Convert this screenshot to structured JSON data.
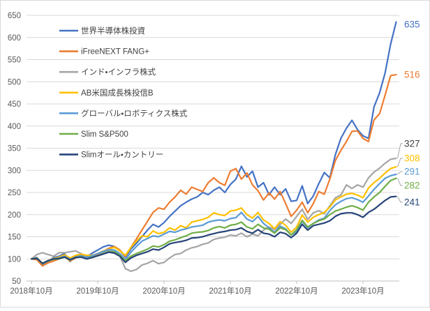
{
  "chart_data": {
    "type": "line",
    "title": "",
    "frequency": "monthly",
    "n_points": 67,
    "x_unit": "month",
    "x_tick_labels": [
      "2018年10月",
      "2019年10月",
      "2020年10月",
      "2021年10月",
      "2022年10月",
      "2023年10月"
    ],
    "x_tick_point_indices": [
      0,
      12,
      24,
      36,
      48,
      60
    ],
    "y_ticks": [
      650,
      600,
      550,
      500,
      450,
      400,
      350,
      300,
      250,
      200,
      150,
      100,
      50
    ],
    "ylim": [
      50,
      650
    ],
    "grid": "horizontal",
    "legend_position": "inside-top-left",
    "colors": {
      "grid": "#D9D9D9",
      "frame_border": "#D9D9D9",
      "axis_line": "#BFBFBF",
      "axis_text": "#595959",
      "legend_text": "#404040",
      "leader_line": "#A6A6A6",
      "background": "#FFFFFF"
    },
    "series": [
      {
        "name": "世界半導体株投資",
        "color": "#4472C4",
        "end_label": 635,
        "values": [
          100,
          103,
          86,
          94,
          103,
          106,
          112,
          94,
          107,
          110,
          104,
          113,
          120,
          127,
          131,
          128,
          120,
          104,
          122,
          135,
          150,
          165,
          178,
          172,
          182,
          196,
          208,
          220,
          228,
          235,
          240,
          250,
          245,
          255,
          262,
          250,
          268,
          280,
          309,
          285,
          298,
          262,
          272,
          245,
          262,
          245,
          258,
          230,
          232,
          265,
          225,
          242,
          270,
          295,
          283,
          335,
          372,
          395,
          413,
          392,
          378,
          372,
          443,
          475,
          520,
          585,
          635
        ]
      },
      {
        "name": "iFreeNEXT FANG+",
        "color": "#ED7D31",
        "end_label": 516,
        "values": [
          100,
          98,
          84,
          91,
          95,
          100,
          105,
          95,
          102,
          107,
          103,
          104,
          110,
          117,
          124,
          128,
          120,
          106,
          126,
          145,
          165,
          185,
          205,
          215,
          212,
          228,
          240,
          255,
          246,
          262,
          257,
          252,
          272,
          283,
          272,
          266,
          298,
          304,
          280,
          294,
          267,
          254,
          233,
          249,
          235,
          252,
          225,
          196,
          210,
          228,
          204,
          225,
          252,
          246,
          280,
          322,
          345,
          365,
          388,
          389,
          372,
          365,
          414,
          428,
          470,
          514,
          516
        ]
      },
      {
        "name": "インド・インフラ株式",
        "color": "#A5A5A5",
        "label_color": "#404040",
        "end_label": 327,
        "values": [
          100,
          110,
          114,
          110,
          106,
          114,
          114,
          116,
          118,
          112,
          103,
          108,
          112,
          114,
          118,
          116,
          106,
          78,
          72,
          76,
          86,
          90,
          96,
          89,
          92,
          102,
          110,
          112,
          120,
          125,
          128,
          133,
          136,
          144,
          147,
          149,
          154,
          152,
          158,
          150,
          156,
          152,
          165,
          172,
          166,
          178,
          190,
          180,
          196,
          212,
          189,
          204,
          209,
          202,
          220,
          238,
          244,
          267,
          259,
          267,
          262,
          283,
          296,
          305,
          316,
          325,
          327
        ]
      },
      {
        "name": "AB米国成長株投信B",
        "color": "#FFC000",
        "end_label": 308,
        "values": [
          100,
          102,
          90,
          96,
          101,
          104,
          109,
          102,
          108,
          111,
          108,
          108,
          112,
          118,
          122,
          126,
          118,
          108,
          126,
          140,
          152,
          150,
          163,
          157,
          160,
          170,
          165,
          175,
          170,
          183,
          186,
          189,
          194,
          204,
          200,
          198,
          208,
          210,
          215,
          200,
          192,
          205,
          188,
          180,
          168,
          184,
          176,
          160,
          172,
          199,
          183,
          194,
          200,
          205,
          217,
          233,
          240,
          246,
          248,
          244,
          238,
          260,
          272,
          282,
          294,
          304,
          308
        ]
      },
      {
        "name": "グローバル・ロボティクス株式",
        "color": "#5B9BD5",
        "end_label": 291,
        "values": [
          100,
          101,
          89,
          95,
          100,
          102,
          106,
          99,
          104,
          107,
          103,
          107,
          112,
          117,
          121,
          120,
          112,
          98,
          115,
          128,
          140,
          146,
          152,
          150,
          156,
          162,
          160,
          165,
          168,
          172,
          174,
          176,
          183,
          186,
          188,
          186,
          191,
          193,
          205,
          190,
          184,
          196,
          180,
          170,
          160,
          174,
          168,
          154,
          162,
          185,
          170,
          180,
          188,
          192,
          209,
          222,
          230,
          236,
          238,
          234,
          228,
          242,
          257,
          270,
          282,
          288,
          291
        ]
      },
      {
        "name": "Slim S&P500",
        "color": "#70AD47",
        "end_label": 282,
        "values": [
          100,
          102,
          89,
          95,
          99,
          100,
          104,
          97,
          103,
          105,
          100,
          104,
          107,
          112,
          116,
          116,
          108,
          96,
          106,
          112,
          117,
          122,
          129,
          127,
          132,
          140,
          143,
          148,
          152,
          158,
          160,
          161,
          164,
          170,
          173,
          170,
          176,
          178,
          183,
          172,
          168,
          178,
          170,
          167,
          158,
          170,
          166,
          154,
          166,
          187,
          172,
          180,
          186,
          190,
          200,
          208,
          212,
          217,
          220,
          216,
          210,
          228,
          240,
          250,
          264,
          277,
          282
        ]
      },
      {
        "name": "Slimオール・カントリー",
        "color": "#264478",
        "end_label": 241,
        "values": [
          100,
          101,
          90,
          96,
          100,
          101,
          104,
          98,
          103,
          104,
          100,
          103,
          107,
          111,
          115,
          113,
          106,
          92,
          102,
          108,
          112,
          116,
          122,
          120,
          126,
          134,
          137,
          139,
          142,
          147,
          148,
          150,
          154,
          157,
          160,
          162,
          165,
          166,
          170,
          162,
          158,
          166,
          158,
          156,
          150,
          160,
          157,
          148,
          158,
          178,
          165,
          175,
          178,
          181,
          186,
          196,
          202,
          204,
          204,
          200,
          194,
          205,
          212,
          222,
          232,
          240,
          241
        ]
      }
    ]
  }
}
